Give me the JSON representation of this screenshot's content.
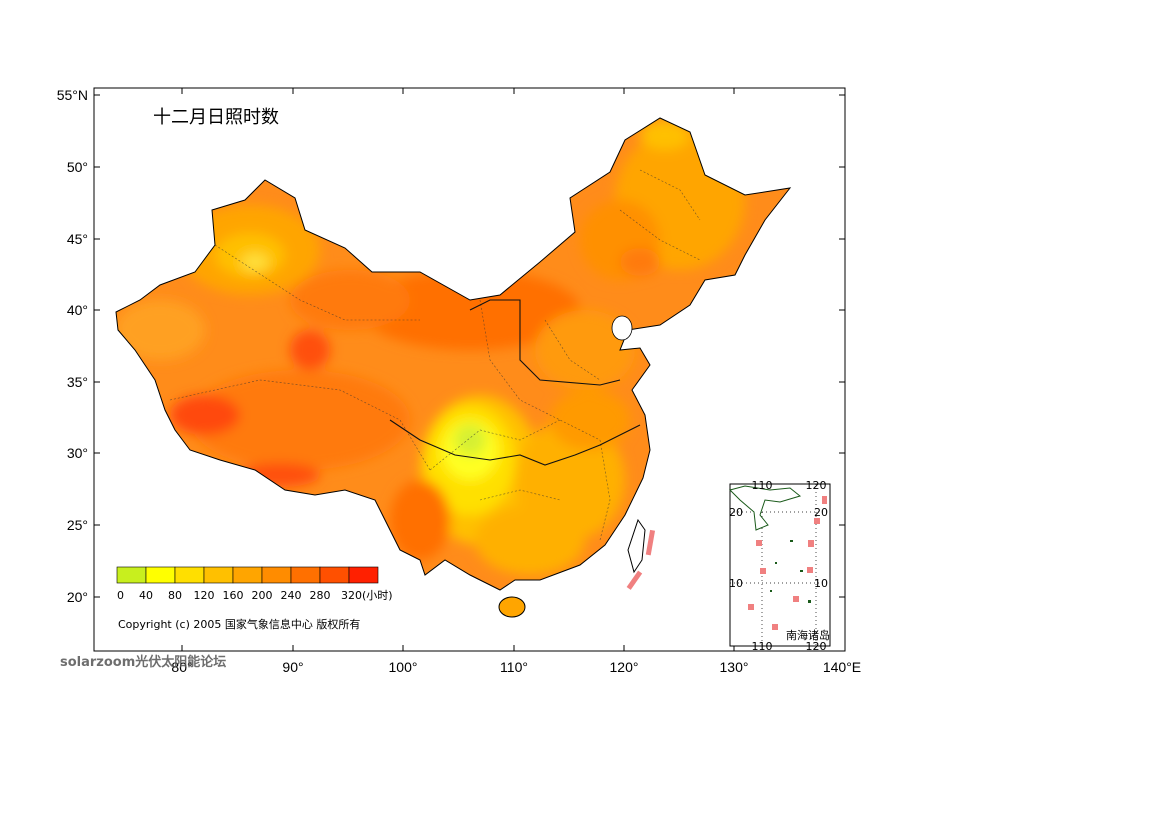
{
  "map": {
    "title": "十二月日照时数",
    "lat_labels": [
      "55°N",
      "50°",
      "45°",
      "40°",
      "35°",
      "30°",
      "25°",
      "20°"
    ],
    "lon_labels": [
      "80°",
      "90°",
      "100°",
      "110°",
      "120°",
      "130°",
      "140°E"
    ],
    "legend": {
      "ticks": [
        "0",
        "40",
        "80",
        "120",
        "160",
        "200",
        "240",
        "280",
        "320(小时)"
      ],
      "colors": [
        "#c8ef1e",
        "#ffff00",
        "#ffdf00",
        "#ffc000",
        "#ffa500",
        "#ff8c00",
        "#ff7000",
        "#ff5000",
        "#ff2000"
      ]
    },
    "copyright": "Copyright (c) 2005 国家气象信息中心 版权所有",
    "inset": {
      "label": "南海诸岛",
      "top_lon": [
        "110",
        "120"
      ],
      "bottom_lon": [
        "110",
        "120"
      ],
      "left_lat": [
        "20",
        "10"
      ],
      "right_lat": [
        "20",
        "10"
      ]
    },
    "watermark": "solarzoom光伏太阳能论坛"
  }
}
